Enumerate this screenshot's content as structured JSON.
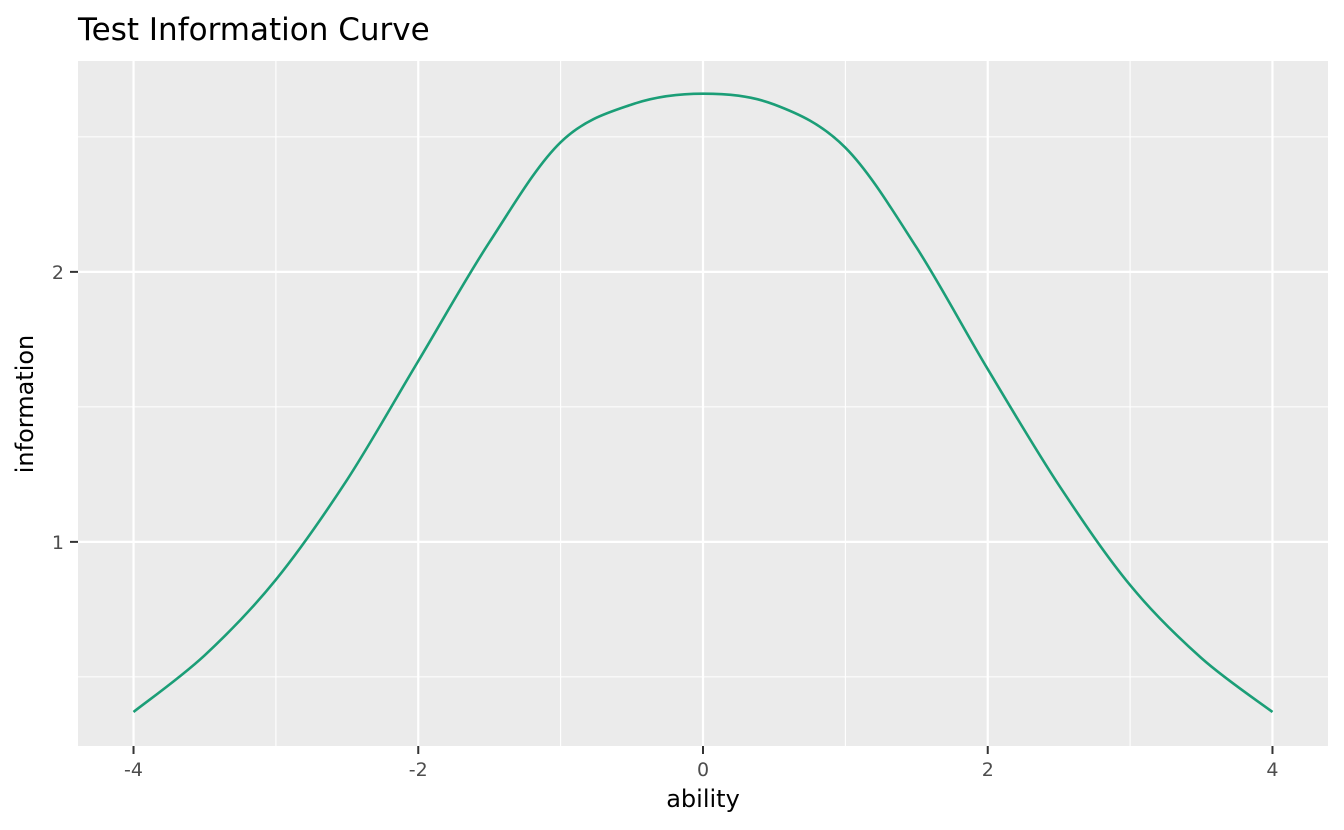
{
  "title": "Test Information Curve",
  "chart_data": {
    "type": "line",
    "title": "Test Information Curve",
    "xlabel": "ability",
    "ylabel": "information",
    "x": [
      -4,
      -3.5,
      -3,
      -2.5,
      -2,
      -1.5,
      -1,
      -0.5,
      0,
      0.5,
      1,
      1.5,
      2,
      2.5,
      3,
      3.5,
      4
    ],
    "y": [
      0.37,
      0.58,
      0.86,
      1.23,
      1.67,
      2.11,
      2.48,
      2.62,
      2.66,
      2.62,
      2.46,
      2.09,
      1.64,
      1.21,
      0.84,
      0.57,
      0.37
    ],
    "xlim": [
      -4.39,
      4.39
    ],
    "ylim": [
      0.244,
      2.781
    ],
    "x_major_ticks": [
      -4,
      -2,
      0,
      2,
      4
    ],
    "x_minor_ticks": [
      -3,
      -1,
      1,
      3
    ],
    "y_major_ticks": [
      1,
      2
    ],
    "y_minor_ticks": [
      0.5,
      1.5,
      2.5
    ],
    "x_tick_labels": [
      "-4",
      "-2",
      "0",
      "2",
      "4"
    ],
    "y_tick_labels": [
      "1",
      "2"
    ],
    "legend_position": "none",
    "grid": true,
    "colors": {
      "line": "#1b9e77",
      "panel_background": "#ebebeb",
      "grid_major": "#ffffff",
      "grid_minor": "#ffffff",
      "tick_mark": "#333333",
      "tick_label": "#4d4d4d",
      "title_text": "#000000"
    }
  }
}
